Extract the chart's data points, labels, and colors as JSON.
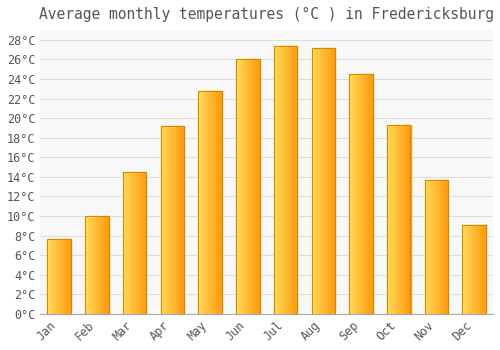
{
  "title": "Average monthly temperatures (°C ) in Fredericksburg",
  "months": [
    "Jan",
    "Feb",
    "Mar",
    "Apr",
    "May",
    "Jun",
    "Jul",
    "Aug",
    "Sep",
    "Oct",
    "Nov",
    "Dec"
  ],
  "values": [
    7.7,
    10.0,
    14.5,
    19.2,
    22.8,
    26.0,
    27.4,
    27.2,
    24.5,
    19.3,
    13.7,
    9.1
  ],
  "bar_color_left": "#FFD060",
  "bar_color_right": "#FFA500",
  "bar_edge_color": "#CC8800",
  "background_color": "#FFFFFF",
  "plot_bg_color": "#F8F8F8",
  "grid_color": "#DDDDDD",
  "text_color": "#555555",
  "ylim": [
    0,
    29
  ],
  "ytick_step": 2,
  "title_fontsize": 10.5,
  "tick_fontsize": 8.5
}
